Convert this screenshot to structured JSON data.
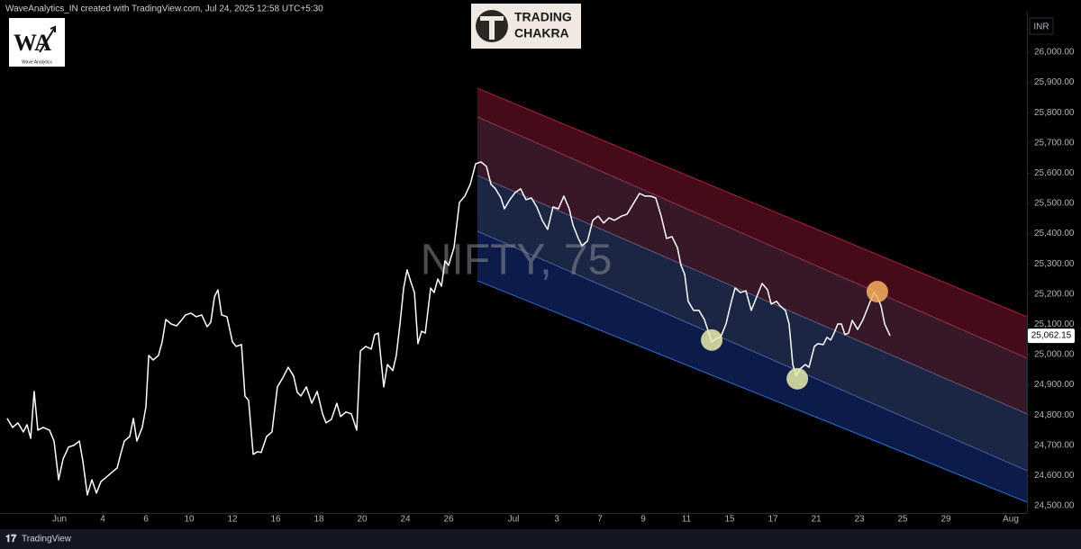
{
  "header": "WaveAnalytics_IN created with TradingView.com, Jul 24, 2025 12:58 UTC+5:30",
  "footer": "TradingView",
  "logos": {
    "left_mark": "WA",
    "left_caption": "Wave Analytics",
    "right_line1": "TRADING",
    "right_line2": "CHAKRA"
  },
  "chart_data": {
    "type": "line",
    "watermark": "NIFTY, 75",
    "currency": "INR",
    "color": "#ffffff",
    "grid": false,
    "xlim": [
      -2.75,
      44.75
    ],
    "ylim": [
      24476,
      26113
    ],
    "xticks": [
      {
        "value": 0,
        "label": "Jun"
      },
      {
        "value": 2,
        "label": "4"
      },
      {
        "value": 4,
        "label": "6"
      },
      {
        "value": 6,
        "label": "10"
      },
      {
        "value": 8,
        "label": "12"
      },
      {
        "value": 10,
        "label": "16"
      },
      {
        "value": 12,
        "label": "18"
      },
      {
        "value": 14,
        "label": "20"
      },
      {
        "value": 16,
        "label": "24"
      },
      {
        "value": 18,
        "label": "26"
      },
      {
        "value": 21,
        "label": "Jul"
      },
      {
        "value": 23,
        "label": "3"
      },
      {
        "value": 25,
        "label": "7"
      },
      {
        "value": 27,
        "label": "9"
      },
      {
        "value": 29,
        "label": "11"
      },
      {
        "value": 31,
        "label": "15"
      },
      {
        "value": 33,
        "label": "17"
      },
      {
        "value": 35,
        "label": "21"
      },
      {
        "value": 37,
        "label": "23"
      },
      {
        "value": 39,
        "label": "25"
      },
      {
        "value": 41,
        "label": "29"
      },
      {
        "value": 44,
        "label": "Aug"
      }
    ],
    "yticks": [
      {
        "value": 24500,
        "label": "24,500.00"
      },
      {
        "value": 24600,
        "label": "24,600.00"
      },
      {
        "value": 24700,
        "label": "24,700.00"
      },
      {
        "value": 24800,
        "label": "24,800.00"
      },
      {
        "value": 24900,
        "label": "24,900.00"
      },
      {
        "value": 25000,
        "label": "25,000.00"
      },
      {
        "value": 25100,
        "label": "25,100.00"
      },
      {
        "value": 25200,
        "label": "25,200.00"
      },
      {
        "value": 25300,
        "label": "25,300.00"
      },
      {
        "value": 25400,
        "label": "25,400.00"
      },
      {
        "value": 25500,
        "label": "25,500.00"
      },
      {
        "value": 25600,
        "label": "25,600.00"
      },
      {
        "value": 25700,
        "label": "25,700.00"
      },
      {
        "value": 25800,
        "label": "25,800.00"
      },
      {
        "value": 25900,
        "label": "25,900.00"
      },
      {
        "value": 26000,
        "label": "26,000.00"
      }
    ],
    "x": [
      -2.42,
      -2.17,
      -1.92,
      -1.67,
      -1.5,
      -1.33,
      -1.17,
      -1.0,
      -0.75,
      -0.46,
      -0.25,
      -0.04,
      0.17,
      0.42,
      0.67,
      0.92,
      1.08,
      1.29,
      1.5,
      1.71,
      1.92,
      2.17,
      2.42,
      2.67,
      2.83,
      3.0,
      3.25,
      3.42,
      3.58,
      3.83,
      4.0,
      4.13,
      4.33,
      4.58,
      4.75,
      4.92,
      5.17,
      5.42,
      5.67,
      5.83,
      6.08,
      6.33,
      6.58,
      6.83,
      7.0,
      7.17,
      7.33,
      7.5,
      7.75,
      8.0,
      8.17,
      8.42,
      8.58,
      8.75,
      8.96,
      9.17,
      9.33,
      9.58,
      9.83,
      10.08,
      10.33,
      10.58,
      10.83,
      11.0,
      11.17,
      11.42,
      11.67,
      11.92,
      12.17,
      12.33,
      12.58,
      12.83,
      13.0,
      13.25,
      13.5,
      13.75,
      13.92,
      14.17,
      14.42,
      14.58,
      14.75,
      15.0,
      15.17,
      15.42,
      15.58,
      15.75,
      15.92,
      16.08,
      16.25,
      16.42,
      16.58,
      16.75,
      16.92,
      17.17,
      17.33,
      17.5,
      17.67,
      17.83,
      18.0,
      18.25,
      18.5,
      18.75,
      19.0,
      19.25,
      19.5,
      19.75,
      19.96,
      20.17,
      20.42,
      20.58,
      20.83,
      21.08,
      21.33,
      21.58,
      21.83,
      22.08,
      22.33,
      22.58,
      22.83,
      23.08,
      23.33,
      23.58,
      23.75,
      24.0,
      24.17,
      24.42,
      24.67,
      24.92,
      25.17,
      25.42,
      25.67,
      26.0,
      26.25,
      26.58,
      26.83,
      27.08,
      27.33,
      27.58,
      27.83,
      28.08,
      28.33,
      28.58,
      28.75,
      28.92,
      29.08,
      29.33,
      29.58,
      29.83,
      30.17,
      30.42,
      30.58,
      30.83,
      31.08,
      31.25,
      31.5,
      31.75,
      32.0,
      32.25,
      32.5,
      32.75,
      32.92,
      33.17,
      33.33,
      33.58,
      33.75,
      33.92,
      34.08,
      34.25,
      34.5,
      34.67,
      34.92,
      35.08,
      35.33,
      35.5,
      35.67,
      35.83,
      36.0,
      36.17,
      36.33,
      36.5,
      36.67,
      36.92,
      37.17,
      37.42,
      37.67,
      37.83,
      38.0,
      38.17,
      38.42
    ],
    "values": [
      24789,
      24759,
      24774,
      24744,
      24768,
      24723,
      24878,
      24750,
      24759,
      24750,
      24714,
      24586,
      24655,
      24694,
      24700,
      24714,
      24649,
      24536,
      24586,
      24542,
      24580,
      24595,
      24610,
      24625,
      24670,
      24714,
      24729,
      24789,
      24714,
      24759,
      24827,
      24997,
      24982,
      24997,
      25042,
      25116,
      25101,
      25095,
      25116,
      25131,
      25137,
      25125,
      25131,
      25092,
      25107,
      25191,
      25214,
      25131,
      25125,
      25042,
      25027,
      25033,
      24863,
      24848,
      24670,
      24679,
      24676,
      24729,
      24744,
      24893,
      24923,
      24958,
      24929,
      24875,
      24863,
      24893,
      24839,
      24878,
      24804,
      24774,
      24786,
      24839,
      24795,
      24810,
      24804,
      24750,
      25012,
      25027,
      25018,
      25066,
      25071,
      24893,
      24967,
      24947,
      24997,
      25101,
      25220,
      25280,
      25241,
      25205,
      25036,
      25077,
      25071,
      25220,
      25205,
      25250,
      25226,
      25310,
      25295,
      25354,
      25503,
      25524,
      25563,
      25631,
      25637,
      25622,
      25563,
      25548,
      25518,
      25482,
      25512,
      25536,
      25548,
      25512,
      25518,
      25488,
      25444,
      25414,
      25488,
      25482,
      25524,
      25482,
      25429,
      25384,
      25360,
      25375,
      25444,
      25458,
      25435,
      25452,
      25444,
      25458,
      25464,
      25503,
      25533,
      25524,
      25524,
      25518,
      25458,
      25384,
      25390,
      25354,
      25295,
      25265,
      25176,
      25146,
      25146,
      25116,
      25042,
      25054,
      25057,
      25101,
      25176,
      25220,
      25205,
      25211,
      25146,
      25191,
      25235,
      25214,
      25167,
      25176,
      25161,
      25146,
      25101,
      24967,
      24929,
      24952,
      24967,
      24958,
      25027,
      25036,
      25033,
      25057,
      25048,
      25071,
      25101,
      25101,
      25066,
      25071,
      25113,
      25083,
      25116,
      25161,
      25205,
      25191,
      25161,
      25101,
      25062.15
    ],
    "price_label": {
      "value": 25062.15,
      "label": "25,062.15"
    },
    "channel": {
      "x": [
        19.33,
        44.75
      ],
      "lines": [
        {
          "values": [
            25881,
            25125
          ],
          "color": "#b0213f"
        },
        {
          "values": [
            25786,
            24988
          ],
          "color": "#8a3850"
        },
        {
          "values": [
            25592,
            24804
          ],
          "color": "#6b5a7a"
        },
        {
          "values": [
            25408,
            24616
          ],
          "color": "#4a5f9e"
        },
        {
          "values": [
            25244,
            24512
          ],
          "color": "#2f6fd6"
        }
      ],
      "band_colors": [
        "#4c0c1c",
        "#3e1a2c",
        "#1e2a4c",
        "#0e1e52"
      ]
    },
    "markers": [
      {
        "x": 30.17,
        "y": 25048,
        "color": "#e9ecac"
      },
      {
        "x": 34.13,
        "y": 24920,
        "color": "#e9ecac"
      },
      {
        "x": 37.83,
        "y": 25208,
        "color": "#f7b060"
      }
    ]
  }
}
